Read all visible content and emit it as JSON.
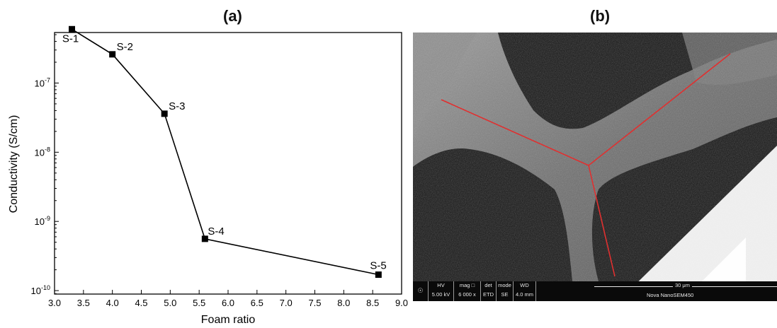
{
  "panels": {
    "a_label": "(a)",
    "b_label": "(b)"
  },
  "chart_data": {
    "type": "line",
    "title": "",
    "xlabel": "Foam ratio",
    "ylabel": "Conductivity (S/cm)",
    "xlim": [
      3.0,
      9.0
    ],
    "ylim_log10": [
      -10.05,
      -6.27
    ],
    "yscale": "log",
    "x_ticks": [
      "3.0",
      "3.5",
      "4.0",
      "4.5",
      "5.0",
      "5.5",
      "6.0",
      "6.5",
      "7.0",
      "7.5",
      "8.0",
      "8.5",
      "9.0"
    ],
    "y_ticks": [
      {
        "exp": -10,
        "base": "10",
        "sup": "-10"
      },
      {
        "exp": -9,
        "base": "10",
        "sup": "-9"
      },
      {
        "exp": -8,
        "base": "10",
        "sup": "-8"
      },
      {
        "exp": -7,
        "base": "10",
        "sup": "-7"
      }
    ],
    "grid": false,
    "marker": "square",
    "points": [
      {
        "label": "S-1",
        "x": 3.3,
        "y": 6e-07
      },
      {
        "label": "S-2",
        "x": 4.0,
        "y": 2.6e-07
      },
      {
        "label": "S-3",
        "x": 4.9,
        "y": 3.6e-08
      },
      {
        "label": "S-4",
        "x": 5.6,
        "y": 5.6e-10
      },
      {
        "label": "S-5",
        "x": 8.6,
        "y": 1.7e-10
      }
    ]
  },
  "sem": {
    "hv_label": "HV",
    "hv_value": "5.00 kV",
    "mag_label": "mag □",
    "mag_value": "6 000 x",
    "det_label": "det",
    "det_value": "ETD",
    "mode_label": "mode",
    "mode_value": "SE",
    "wd_label": "WD",
    "wd_value": "4.0 mm",
    "scale_label": "30 μm",
    "instrument": "Nova NanoSEM450",
    "line_color": "#e03030"
  }
}
